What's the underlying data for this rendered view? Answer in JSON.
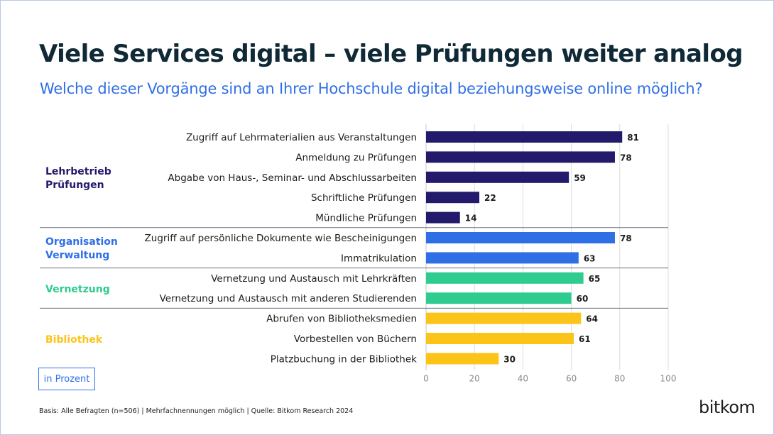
{
  "title": "Viele Services digital – viele Prüfungen weiter analog",
  "subtitle": "Welche dieser Vorgänge sind an Ihrer Hochschule digital beziehungsweise online möglich?",
  "unit_label": "in Prozent",
  "footnote": "Basis: Alle Befragten (n=506) | Mehrfachnennungen möglich | Quelle: Bitkom Research 2024",
  "logo_text": "bitkom",
  "colors": {
    "Lehrbetrieb Prüfungen": "#231a6b",
    "Organisation Verwaltung": "#2f6fe6",
    "Vernetzung": "#2ecc8f",
    "Bibliothek": "#fcc418",
    "title": "#0f2a36",
    "subtitle": "#2f6fe6",
    "gridline": "#dddddd"
  },
  "groups": [
    {
      "lines": [
        "Lehrbetrieb",
        "Prüfungen"
      ],
      "color": "#231a6b"
    },
    {
      "lines": [
        "Organisation",
        "Verwaltung"
      ],
      "color": "#2f6fe6"
    },
    {
      "lines": [
        "Vernetzung"
      ],
      "color": "#2ecc8f"
    },
    {
      "lines": [
        "Bibliothek"
      ],
      "color": "#fcc418"
    }
  ],
  "chart_data": {
    "type": "bar",
    "orientation": "horizontal",
    "categories": [
      "Zugriff auf Lehrmaterialien aus Veranstaltungen",
      "Anmeldung zu Prüfungen",
      "Abgabe von Haus-, Seminar- und Abschlussarbeiten",
      "Schriftliche Prüfungen",
      "Mündliche Prüfungen",
      "Zugriff auf persönliche Dokumente wie Bescheinigungen",
      "Immatrikulation",
      "Vernetzung und Austausch mit Lehrkräften",
      "Vernetzung und Austausch mit anderen Studierenden",
      "Abrufen von Bibliotheksmedien",
      "Vorbestellen von Büchern ",
      "Platzbuchung in der Bibliothek"
    ],
    "values": [
      81,
      78,
      59,
      22,
      14,
      78,
      63,
      65,
      60,
      64,
      61,
      30
    ],
    "category_group": [
      "Lehrbetrieb Prüfungen",
      "Lehrbetrieb Prüfungen",
      "Lehrbetrieb Prüfungen",
      "Lehrbetrieb Prüfungen",
      "Lehrbetrieb Prüfungen",
      "Organisation Verwaltung",
      "Organisation Verwaltung",
      "Vernetzung",
      "Vernetzung",
      "Bibliothek",
      "Bibliothek",
      "Bibliothek"
    ],
    "xlim": [
      0,
      100
    ],
    "xticks": [
      0,
      20,
      40,
      60,
      80,
      100
    ],
    "grid": true,
    "xlabel": "",
    "ylabel": ""
  }
}
